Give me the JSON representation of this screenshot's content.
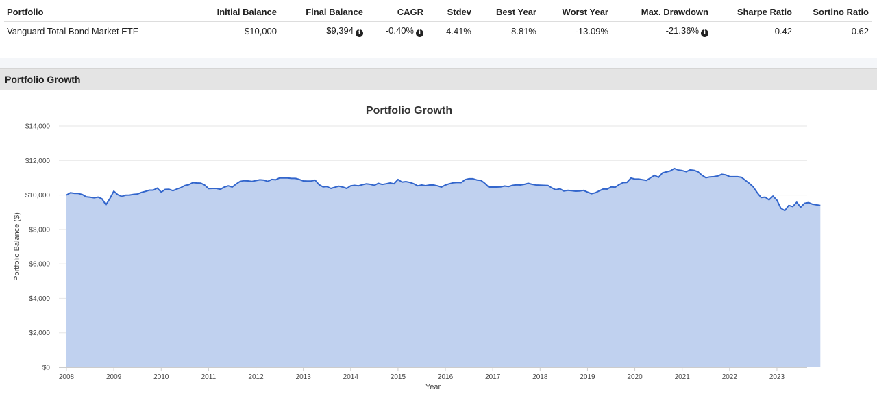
{
  "metrics_table": {
    "headers": [
      "Portfolio",
      "Initial Balance",
      "Final Balance",
      "CAGR",
      "Stdev",
      "Best Year",
      "Worst Year",
      "Max. Drawdown",
      "Sharpe Ratio",
      "Sortino Ratio"
    ],
    "rows": [
      {
        "portfolio": "Vanguard Total Bond Market ETF",
        "initial_balance": "$10,000",
        "final_balance": "$9,394",
        "cagr": "-0.40%",
        "stdev": "4.41%",
        "best_year": "8.81%",
        "worst_year": "-13.09%",
        "max_drawdown": "-21.36%",
        "sharpe_ratio": "0.42",
        "sortino_ratio": "0.62"
      }
    ],
    "info_icon": "info-circle-icon"
  },
  "section": {
    "title": "Portfolio Growth"
  },
  "colors": {
    "line": "#3366cc",
    "fill": "#c0d1ef",
    "grid": "#e6e6e6",
    "header_bg": "#e4e4e4"
  },
  "chart_data": {
    "type": "area",
    "title": "Portfolio Growth",
    "xlabel": "Year",
    "ylabel": "Portfolio Balance ($)",
    "ylim": [
      0,
      14000
    ],
    "yticks": [
      "$0",
      "$2,000",
      "$4,000",
      "$6,000",
      "$8,000",
      "$10,000",
      "$12,000",
      "$14,000"
    ],
    "xticks": [
      "2008",
      "2009",
      "2010",
      "2011",
      "2012",
      "2013",
      "2014",
      "2015",
      "2016",
      "2017",
      "2018",
      "2019",
      "2020",
      "2021",
      "2022",
      "2023"
    ],
    "grid": true,
    "legend": "none",
    "series": [
      {
        "name": "Vanguard Total Bond Market ETF",
        "start": "2008-01",
        "frequency": "monthly",
        "values": [
          10000,
          10130,
          10100,
          10090,
          10030,
          9900,
          9870,
          9840,
          9880,
          9780,
          9430,
          9800,
          10220,
          10020,
          9920,
          9990,
          10000,
          10040,
          10060,
          10150,
          10210,
          10280,
          10280,
          10400,
          10170,
          10320,
          10330,
          10250,
          10350,
          10430,
          10550,
          10600,
          10720,
          10700,
          10690,
          10580,
          10370,
          10380,
          10380,
          10330,
          10460,
          10530,
          10460,
          10640,
          10790,
          10830,
          10820,
          10790,
          10840,
          10880,
          10860,
          10790,
          10900,
          10880,
          10990,
          10990,
          10990,
          10960,
          10960,
          10900,
          10820,
          10810,
          10810,
          10860,
          10600,
          10470,
          10490,
          10380,
          10450,
          10510,
          10460,
          10380,
          10530,
          10560,
          10530,
          10600,
          10650,
          10620,
          10560,
          10680,
          10610,
          10650,
          10700,
          10650,
          10900,
          10750,
          10780,
          10730,
          10650,
          10530,
          10580,
          10540,
          10580,
          10580,
          10530,
          10460,
          10580,
          10650,
          10710,
          10730,
          10720,
          10890,
          10940,
          10940,
          10870,
          10850,
          10680,
          10460,
          10460,
          10460,
          10470,
          10520,
          10490,
          10560,
          10590,
          10580,
          10620,
          10680,
          10620,
          10580,
          10570,
          10560,
          10550,
          10410,
          10300,
          10360,
          10230,
          10270,
          10250,
          10220,
          10230,
          10270,
          10170,
          10080,
          10130,
          10240,
          10350,
          10340,
          10470,
          10450,
          10600,
          10720,
          10730,
          10980,
          10920,
          10920,
          10880,
          10850,
          11000,
          11140,
          11020,
          11280,
          11340,
          11400,
          11540,
          11450,
          11420,
          11350,
          11460,
          11430,
          11350,
          11150,
          11000,
          11050,
          11060,
          11100,
          11200,
          11170,
          11070,
          11060,
          11060,
          11030,
          10850,
          10680,
          10470,
          10140,
          9850,
          9880,
          9720,
          9940,
          9700,
          9230,
          9100,
          9400,
          9330,
          9580,
          9290,
          9520,
          9560,
          9470,
          9430,
          9394
        ]
      }
    ]
  }
}
